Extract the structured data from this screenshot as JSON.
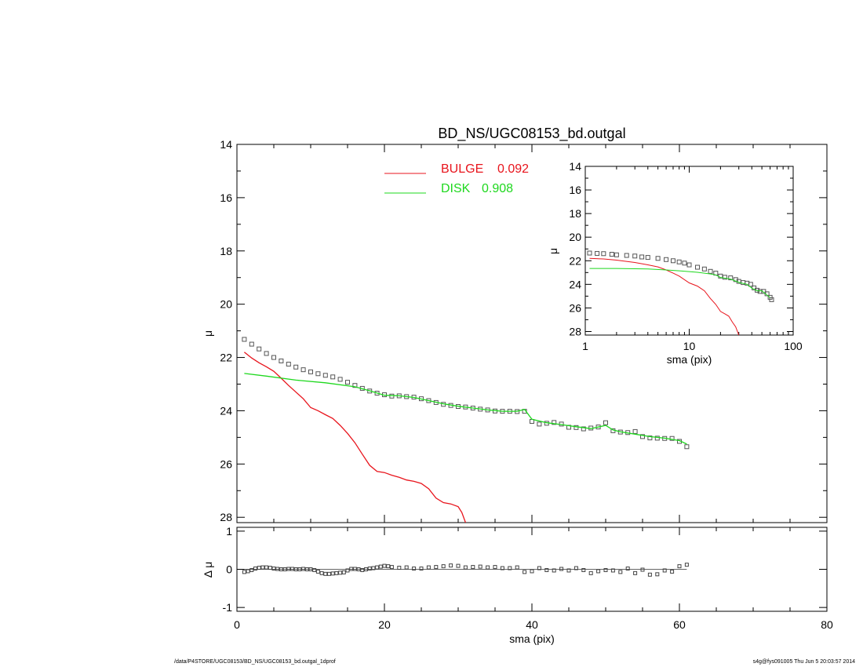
{
  "chart_data": [
    {
      "type": "line",
      "panel": "main",
      "title": "BD_NS/UGC08153_bd.outgal",
      "xlabel": "",
      "ylabel": "μ",
      "xlim": [
        0,
        80
      ],
      "ylim": [
        28.2,
        14
      ],
      "y_inverted": true,
      "yticks": [
        14,
        16,
        18,
        20,
        22,
        24,
        26,
        28
      ],
      "legend_position": "top-center",
      "legend": [
        {
          "name": "BULGE",
          "value": "0.092",
          "color": "#e8141c"
        },
        {
          "name": "DISK",
          "value": "0.908",
          "color": "#1ed81e"
        }
      ],
      "series": [
        {
          "name": "data",
          "style": "open-squares",
          "color": "#555555",
          "x": [
            1,
            2,
            3,
            4,
            5,
            6,
            7,
            8,
            9,
            10,
            11,
            12,
            13,
            14,
            15,
            16,
            17,
            18,
            19,
            20,
            21,
            22,
            23,
            24,
            25,
            26,
            27,
            28,
            29,
            30,
            31,
            32,
            33,
            34,
            35,
            36,
            37,
            38,
            39,
            40,
            41,
            42,
            43,
            44,
            45,
            46,
            47,
            48,
            49,
            50,
            51,
            52,
            53,
            54,
            55,
            56,
            57,
            58,
            59,
            60,
            61
          ],
          "y": [
            21.32,
            21.5,
            21.68,
            21.85,
            22.0,
            22.13,
            22.25,
            22.36,
            22.46,
            22.54,
            22.61,
            22.67,
            22.73,
            22.82,
            22.93,
            23.05,
            23.16,
            23.26,
            23.34,
            23.4,
            23.45,
            23.44,
            23.47,
            23.49,
            23.55,
            23.62,
            23.69,
            23.76,
            23.8,
            23.84,
            23.86,
            23.9,
            23.94,
            23.97,
            24.01,
            24.02,
            24.02,
            24.03,
            24.02,
            24.4,
            24.5,
            24.47,
            24.44,
            24.5,
            24.62,
            24.63,
            24.68,
            24.65,
            24.61,
            24.45,
            24.75,
            24.8,
            24.82,
            24.78,
            24.97,
            25.02,
            25.03,
            25.04,
            25.04,
            25.15,
            25.35
          ]
        },
        {
          "name": "BULGE",
          "style": "line",
          "color": "#e8141c",
          "x": [
            1,
            2,
            3,
            4,
            5,
            6,
            7,
            8,
            9,
            10,
            11,
            12,
            13,
            14,
            15,
            16,
            17,
            18,
            19,
            20,
            21,
            22,
            23,
            24,
            25,
            26,
            27,
            28,
            29,
            30,
            30.5,
            31
          ],
          "y": [
            21.8,
            22.02,
            22.2,
            22.35,
            22.52,
            22.78,
            23.05,
            23.3,
            23.55,
            23.88,
            24.0,
            24.15,
            24.29,
            24.55,
            24.85,
            25.2,
            25.63,
            26.05,
            26.28,
            26.32,
            26.42,
            26.5,
            26.6,
            26.65,
            26.73,
            26.93,
            27.28,
            27.45,
            27.5,
            27.6,
            27.82,
            28.2
          ]
        },
        {
          "name": "DISK",
          "style": "line",
          "color": "#1ed81e",
          "x": [
            1,
            4,
            8,
            12,
            16,
            18,
            20,
            22,
            24,
            26,
            28,
            30,
            32,
            34,
            36,
            38,
            39,
            40,
            42,
            44,
            46,
            48,
            50,
            51,
            52,
            54,
            56,
            58,
            60,
            61
          ],
          "y": [
            22.6,
            22.7,
            22.85,
            22.95,
            23.1,
            23.25,
            23.42,
            23.44,
            23.5,
            23.62,
            23.74,
            23.83,
            23.9,
            23.97,
            24.02,
            24.02,
            23.95,
            24.32,
            24.45,
            24.52,
            24.6,
            24.67,
            24.55,
            24.72,
            24.79,
            24.88,
            24.97,
            25.03,
            25.12,
            25.25
          ]
        }
      ]
    },
    {
      "type": "scatter",
      "panel": "residual",
      "xlabel": "sma (pix)",
      "ylabel": "Δ μ",
      "xlim": [
        0,
        80
      ],
      "ylim": [
        -1.1,
        1.1
      ],
      "xticks": [
        0,
        20,
        40,
        60,
        80
      ],
      "yticks": [
        -1,
        0,
        1
      ],
      "reference_line": 0,
      "series": [
        {
          "name": "residual",
          "style": "open-squares",
          "color": "#444444",
          "x": [
            1,
            1.5,
            2,
            2.5,
            3,
            3.5,
            4,
            4.5,
            5,
            5.5,
            6,
            6.5,
            7,
            7.5,
            8,
            8.5,
            9,
            9.5,
            10,
            10.5,
            11,
            11.5,
            12,
            12.5,
            13,
            13.5,
            14,
            14.5,
            15,
            15.5,
            16,
            16.5,
            17,
            17.5,
            18,
            18.5,
            19,
            19.5,
            20,
            20.5,
            21,
            22,
            23,
            24,
            25,
            26,
            27,
            28,
            29,
            30,
            31,
            32,
            33,
            34,
            35,
            36,
            37,
            38,
            39,
            40,
            41,
            42,
            43,
            44,
            45,
            46,
            47,
            48,
            49,
            50,
            51,
            52,
            53,
            54,
            55,
            56,
            57,
            58,
            59,
            60,
            61
          ],
          "y": [
            -0.07,
            -0.05,
            -0.02,
            0.02,
            0.04,
            0.05,
            0.05,
            0.04,
            0.02,
            0.01,
            0.0,
            0.0,
            0.01,
            0.01,
            0.0,
            0.0,
            0.01,
            0.0,
            0.0,
            -0.02,
            -0.06,
            -0.1,
            -0.12,
            -0.12,
            -0.11,
            -0.1,
            -0.09,
            -0.08,
            -0.03,
            0.01,
            0.01,
            0.0,
            -0.02,
            0.0,
            0.02,
            0.03,
            0.05,
            0.07,
            0.09,
            0.08,
            0.06,
            0.04,
            0.05,
            0.02,
            0.02,
            0.05,
            0.06,
            0.08,
            0.1,
            0.09,
            0.05,
            0.06,
            0.07,
            0.05,
            0.06,
            0.03,
            0.03,
            0.05,
            -0.07,
            -0.05,
            0.03,
            -0.02,
            -0.03,
            0.01,
            -0.03,
            0.03,
            -0.02,
            -0.1,
            -0.05,
            -0.02,
            -0.03,
            -0.07,
            0.02,
            -0.1,
            -0.01,
            -0.14,
            -0.13,
            -0.03,
            -0.06,
            0.08,
            0.12
          ]
        }
      ]
    },
    {
      "type": "line",
      "panel": "inset",
      "xlabel": "sma (pix)",
      "ylabel": "μ",
      "xscale": "log",
      "xlim": [
        1,
        100
      ],
      "ylim": [
        28.3,
        14
      ],
      "y_inverted": true,
      "xticks": [
        1,
        10,
        100
      ],
      "yticks": [
        14,
        16,
        18,
        20,
        22,
        24,
        26,
        28
      ],
      "series": [
        {
          "name": "data",
          "style": "open-squares",
          "color": "#555555",
          "x": [
            1.1,
            1.3,
            1.5,
            1.8,
            2,
            2.5,
            3,
            3.5,
            4,
            5,
            6,
            7,
            8,
            9,
            10,
            12,
            14,
            16,
            18,
            20,
            22,
            25,
            28,
            30,
            33,
            36,
            39,
            42,
            45,
            48,
            52,
            56,
            60,
            62
          ],
          "y": [
            21.35,
            21.38,
            21.4,
            21.45,
            21.5,
            21.55,
            21.6,
            21.68,
            21.72,
            21.8,
            21.9,
            22.0,
            22.1,
            22.2,
            22.35,
            22.55,
            22.7,
            22.9,
            23.05,
            23.3,
            23.4,
            23.45,
            23.6,
            23.75,
            23.85,
            23.9,
            24.0,
            24.3,
            24.5,
            24.6,
            24.6,
            24.8,
            25.1,
            25.3
          ]
        },
        {
          "name": "BULGE",
          "style": "line",
          "color": "#e8141c",
          "x": [
            1.1,
            1.5,
            2,
            3,
            4,
            5,
            6,
            7,
            8,
            10,
            12,
            14,
            16,
            18,
            20,
            22,
            24,
            26,
            28,
            30
          ],
          "y": [
            21.8,
            21.85,
            21.95,
            22.15,
            22.35,
            22.52,
            22.78,
            23.05,
            23.3,
            23.88,
            24.15,
            24.55,
            25.2,
            25.7,
            26.3,
            26.5,
            26.7,
            27.2,
            27.6,
            28.3
          ]
        },
        {
          "name": "DISK",
          "style": "line",
          "color": "#1ed81e",
          "x": [
            1.1,
            2,
            4,
            6,
            8,
            10,
            12,
            14,
            16,
            18,
            20,
            25,
            30,
            36,
            40,
            45,
            50,
            55,
            60
          ],
          "y": [
            22.65,
            22.65,
            22.7,
            22.78,
            22.85,
            22.92,
            22.98,
            23.05,
            23.12,
            23.2,
            23.42,
            23.55,
            23.84,
            24.0,
            24.32,
            24.55,
            24.55,
            24.85,
            25.12
          ]
        }
      ]
    }
  ],
  "footer": {
    "left": "/data/P4STORE/UGC08153/BD_NS/UGC08153_bd.outgal_1dprof",
    "right": "s4g@fys091005  Thu Jun  5 20:03:57 2014"
  }
}
